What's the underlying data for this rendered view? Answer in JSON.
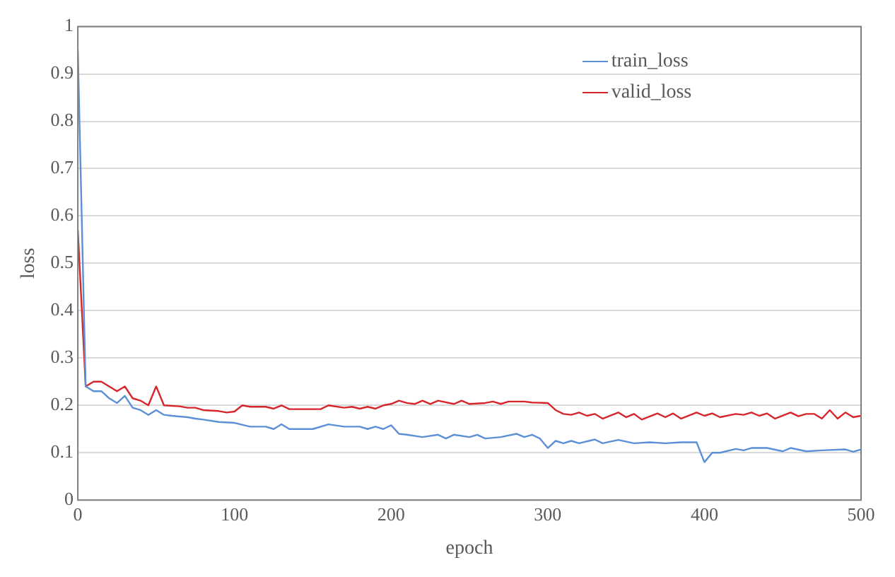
{
  "chart_data": {
    "type": "line",
    "xlabel": "epoch",
    "ylabel": "loss",
    "xlim": [
      0,
      500
    ],
    "xticks": [
      0,
      100,
      200,
      300,
      400,
      500
    ],
    "ylim": [
      0,
      1
    ],
    "yticks": [
      0,
      0.1,
      0.2,
      0.3,
      0.4,
      0.5,
      0.6,
      0.7,
      0.8,
      0.9,
      1
    ],
    "grid": "y",
    "legend": "top right",
    "marker": "none",
    "line_style": "solid",
    "series": [
      {
        "name": "train_loss",
        "color": "#5b8fd6",
        "x": [
          0,
          5,
          10,
          15,
          20,
          25,
          30,
          35,
          40,
          45,
          50,
          55,
          60,
          70,
          75,
          80,
          90,
          100,
          110,
          120,
          125,
          130,
          135,
          150,
          160,
          170,
          180,
          185,
          190,
          195,
          200,
          205,
          210,
          220,
          230,
          235,
          240,
          250,
          255,
          260,
          270,
          280,
          285,
          290,
          295,
          300,
          305,
          310,
          315,
          320,
          330,
          335,
          345,
          355,
          365,
          375,
          385,
          395,
          400,
          405,
          410,
          420,
          425,
          430,
          440,
          450,
          455,
          465,
          475,
          490,
          495,
          500
        ],
        "values": [
          0.95,
          0.24,
          0.23,
          0.23,
          0.215,
          0.205,
          0.22,
          0.195,
          0.19,
          0.18,
          0.19,
          0.18,
          0.178,
          0.175,
          0.172,
          0.17,
          0.165,
          0.163,
          0.155,
          0.155,
          0.15,
          0.16,
          0.15,
          0.15,
          0.16,
          0.155,
          0.155,
          0.15,
          0.155,
          0.15,
          0.158,
          0.14,
          0.138,
          0.133,
          0.138,
          0.13,
          0.138,
          0.133,
          0.138,
          0.13,
          0.133,
          0.14,
          0.133,
          0.138,
          0.13,
          0.11,
          0.125,
          0.12,
          0.125,
          0.12,
          0.128,
          0.12,
          0.127,
          0.12,
          0.122,
          0.12,
          0.122,
          0.122,
          0.08,
          0.1,
          0.1,
          0.108,
          0.105,
          0.11,
          0.11,
          0.103,
          0.11,
          0.103,
          0.105,
          0.107,
          0.102,
          0.107
        ]
      },
      {
        "name": "valid_loss",
        "color": "#d7262b",
        "x": [
          0,
          5,
          10,
          15,
          20,
          25,
          30,
          35,
          40,
          45,
          50,
          55,
          65,
          70,
          75,
          80,
          90,
          95,
          100,
          105,
          110,
          120,
          125,
          130,
          135,
          155,
          160,
          170,
          175,
          180,
          185,
          190,
          195,
          200,
          205,
          210,
          215,
          220,
          225,
          230,
          240,
          245,
          250,
          260,
          265,
          270,
          275,
          285,
          290,
          300,
          305,
          310,
          315,
          320,
          325,
          330,
          335,
          345,
          350,
          355,
          360,
          370,
          375,
          380,
          385,
          395,
          400,
          405,
          410,
          420,
          425,
          430,
          435,
          440,
          445,
          455,
          460,
          465,
          470,
          475,
          480,
          485,
          490,
          495,
          500
        ],
        "values": [
          0.57,
          0.24,
          0.25,
          0.25,
          0.24,
          0.23,
          0.24,
          0.215,
          0.21,
          0.2,
          0.24,
          0.2,
          0.198,
          0.195,
          0.195,
          0.19,
          0.188,
          0.185,
          0.187,
          0.2,
          0.197,
          0.197,
          0.193,
          0.2,
          0.192,
          0.192,
          0.2,
          0.195,
          0.197,
          0.193,
          0.197,
          0.193,
          0.2,
          0.203,
          0.21,
          0.205,
          0.203,
          0.21,
          0.203,
          0.21,
          0.203,
          0.21,
          0.203,
          0.205,
          0.208,
          0.203,
          0.208,
          0.208,
          0.206,
          0.205,
          0.19,
          0.182,
          0.18,
          0.185,
          0.178,
          0.182,
          0.172,
          0.185,
          0.175,
          0.182,
          0.17,
          0.183,
          0.175,
          0.183,
          0.172,
          0.185,
          0.178,
          0.183,
          0.175,
          0.182,
          0.18,
          0.185,
          0.178,
          0.183,
          0.172,
          0.185,
          0.177,
          0.182,
          0.182,
          0.172,
          0.19,
          0.172,
          0.185,
          0.175,
          0.178
        ]
      }
    ]
  }
}
